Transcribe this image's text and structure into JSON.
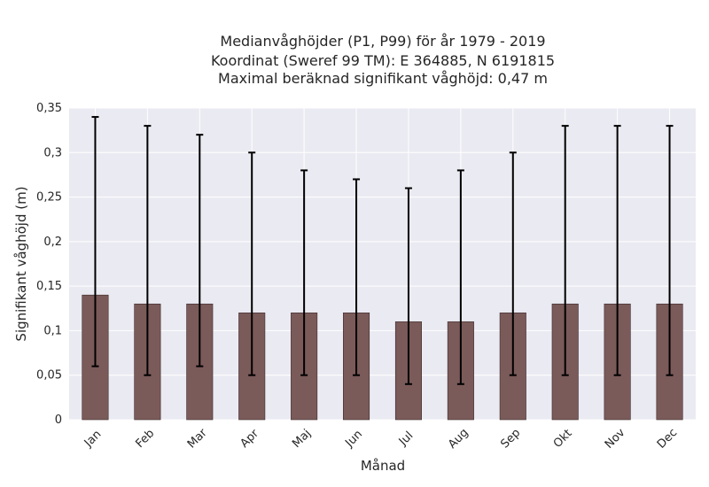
{
  "chart_data": {
    "type": "bar",
    "title_lines": [
      "Medianvåghöjder (P1, P99) för år 1979 - 2019",
      "Koordinat (Sweref 99 TM): E 364885, N 6191815",
      "Maximal beräknad signifikant våghöjd: 0,47 m"
    ],
    "xlabel": "Månad",
    "ylabel": "Signifikant våghöjd (m)",
    "categories": [
      "Jan",
      "Feb",
      "Mar",
      "Apr",
      "Maj",
      "Jun",
      "Jul",
      "Aug",
      "Sep",
      "Okt",
      "Nov",
      "Dec"
    ],
    "values": [
      0.14,
      0.13,
      0.13,
      0.12,
      0.12,
      0.12,
      0.11,
      0.11,
      0.12,
      0.13,
      0.13,
      0.13
    ],
    "p1": [
      0.06,
      0.05,
      0.06,
      0.05,
      0.05,
      0.05,
      0.04,
      0.04,
      0.05,
      0.05,
      0.05,
      0.05
    ],
    "p99": [
      0.34,
      0.33,
      0.32,
      0.3,
      0.28,
      0.27,
      0.26,
      0.28,
      0.3,
      0.33,
      0.33,
      0.33
    ],
    "ylim": [
      0,
      0.35
    ],
    "yticks": [
      0,
      0.05,
      0.1,
      0.15,
      0.2,
      0.25,
      0.3,
      0.35
    ],
    "ytick_labels": [
      "0",
      "0,05",
      "0,1",
      "0,15",
      "0,2",
      "0,25",
      "0,3",
      "0,35"
    ],
    "grid": true,
    "colors": {
      "bar": "#7b5a5a",
      "bar_edge": "#3a2a2a",
      "errorbar": "#000000",
      "plot_bg": "#eaeaf2",
      "grid": "#ffffff"
    }
  }
}
